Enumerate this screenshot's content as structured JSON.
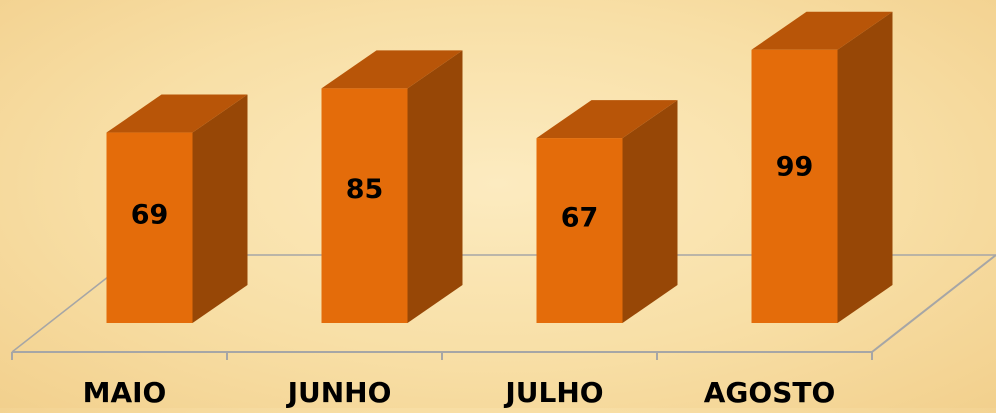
{
  "chart_data": {
    "type": "bar",
    "style": "3d-column",
    "categories": [
      "MAIO",
      "JUNHO",
      "JULHO",
      "AGOSTO"
    ],
    "values": [
      69,
      85,
      67,
      99
    ],
    "data_labels": [
      "69",
      "85",
      "67",
      "99"
    ],
    "title": "",
    "xlabel": "",
    "ylabel": "",
    "ylim": [
      0,
      100
    ],
    "grid": false,
    "legend": "none",
    "colors": {
      "bar_front": "#e46c0a",
      "bar_side": "#974706",
      "bar_top": "#b85508",
      "floor_line": "#a6a6a6",
      "label_text": "#000000",
      "background": "#f8dfa6"
    }
  }
}
